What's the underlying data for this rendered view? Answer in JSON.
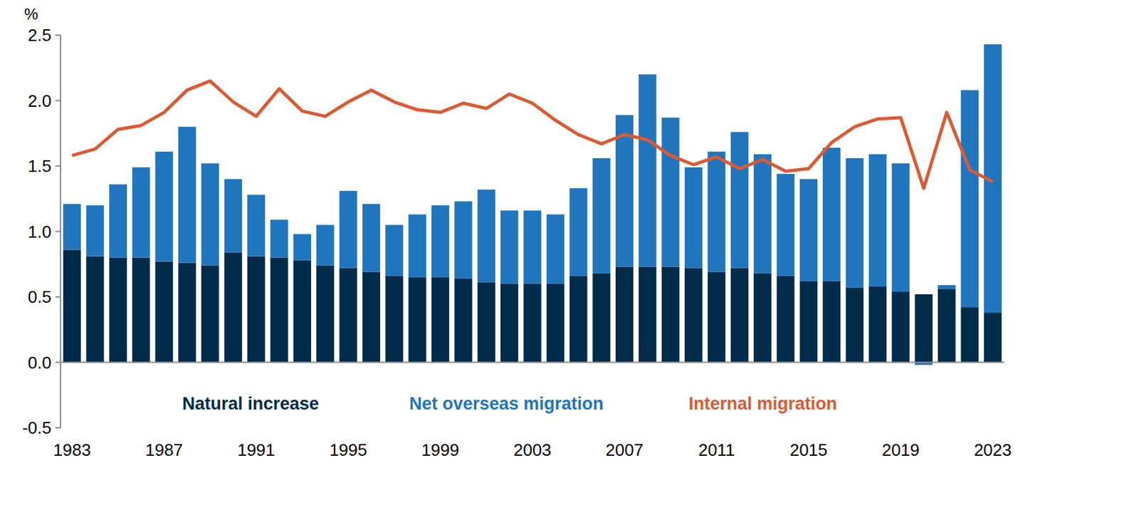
{
  "chart_data": {
    "type": "bar",
    "stacked": true,
    "ylabel": "%",
    "legend": "bottom",
    "grid": false,
    "categories": [
      "1983",
      null,
      null,
      null,
      "1987",
      null,
      null,
      null,
      "1991",
      null,
      null,
      null,
      "1995",
      null,
      null,
      null,
      "1999",
      null,
      null,
      null,
      "2003",
      null,
      null,
      null,
      "2007",
      null,
      null,
      null,
      "2011",
      null,
      null,
      null,
      "2015",
      null,
      null,
      null,
      "2019",
      null,
      null,
      null,
      "2023"
    ],
    "ylim": [
      -0.5,
      2.5
    ],
    "yticks": [
      -0.5,
      {
        "value": 0,
        "label": "0.0"
      },
      0.5,
      {
        "value": 1,
        "label": "1.0"
      },
      1.5,
      {
        "value": 2,
        "label": "2.0"
      },
      2.5
    ],
    "series": [
      {
        "name": "Natural increase",
        "color": "#002b49",
        "type": "bar",
        "values": [
          0.86,
          0.81,
          0.8,
          0.8,
          0.77,
          0.76,
          0.74,
          0.84,
          0.81,
          0.8,
          0.78,
          0.74,
          0.72,
          0.69,
          0.66,
          0.65,
          0.65,
          0.64,
          0.61,
          0.6,
          0.6,
          0.6,
          0.66,
          0.68,
          0.73,
          0.73,
          0.73,
          0.72,
          0.69,
          0.72,
          0.68,
          0.66,
          0.62,
          0.62,
          0.57,
          0.58,
          0.54,
          0.52,
          0.56,
          0.42,
          0.38
        ]
      },
      {
        "name": "Net overseas migration",
        "color": "#2175bd",
        "type": "bar",
        "values": [
          0.35,
          0.39,
          0.56,
          0.69,
          0.84,
          1.04,
          0.78,
          0.56,
          0.47,
          0.29,
          0.2,
          0.31,
          0.59,
          0.52,
          0.39,
          0.48,
          0.55,
          0.59,
          0.71,
          0.56,
          0.56,
          0.53,
          0.67,
          0.88,
          1.16,
          1.47,
          1.14,
          0.77,
          0.92,
          1.04,
          0.91,
          0.78,
          0.78,
          1.02,
          0.99,
          1.01,
          0.98,
          -0.02,
          0.03,
          1.66,
          2.05
        ]
      },
      {
        "name": "Internal migration",
        "color": "#d95b35",
        "type": "line",
        "values": [
          1.58,
          1.63,
          1.78,
          1.81,
          1.91,
          2.08,
          2.15,
          1.99,
          1.88,
          2.09,
          1.92,
          1.88,
          1.99,
          2.08,
          1.99,
          1.93,
          1.91,
          1.98,
          1.94,
          2.05,
          1.98,
          1.85,
          1.74,
          1.67,
          1.74,
          1.7,
          1.58,
          1.51,
          1.57,
          1.48,
          1.55,
          1.46,
          1.48,
          1.68,
          1.8,
          1.86,
          1.87,
          1.33,
          1.91,
          1.47,
          1.38
        ]
      }
    ]
  }
}
